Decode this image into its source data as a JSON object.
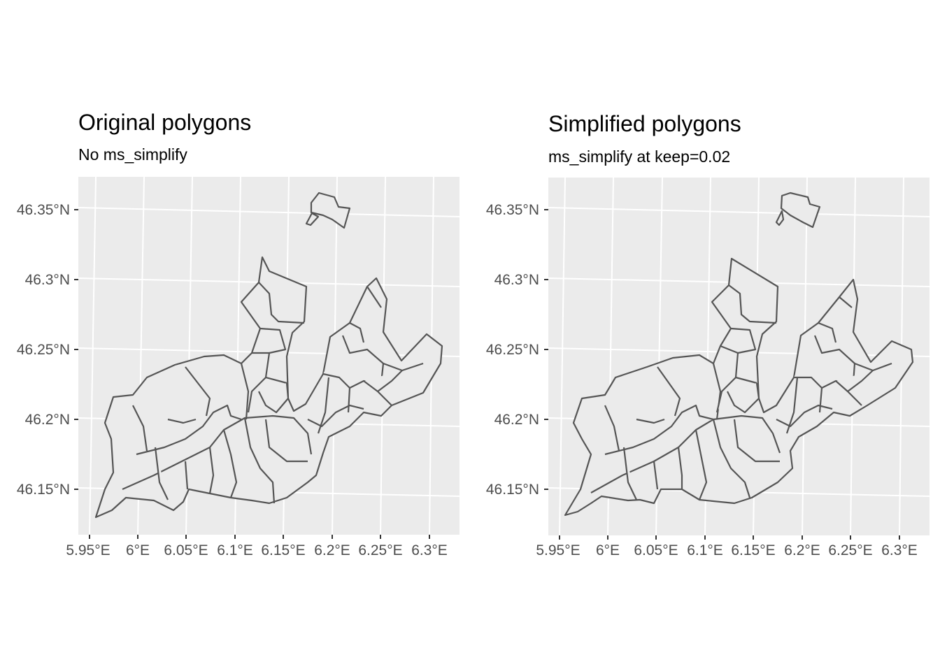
{
  "panels": [
    {
      "title": "Original polygons",
      "subtitle": "No ms_simplify",
      "x_ticks": [
        "5.95°E",
        "6°E",
        "6.05°E",
        "6.1°E",
        "6.15°E",
        "6.2°E",
        "6.25°E",
        "6.3°E"
      ],
      "y_ticks": [
        "46.35°N",
        "46.3°N",
        "46.25°N",
        "46.2°N",
        "46.15°N"
      ]
    },
    {
      "title": "Simplified polygons",
      "subtitle": "ms_simplify at keep=0.02",
      "x_ticks": [
        "5.95°E",
        "6°E",
        "6.05°E",
        "6.1°E",
        "6.15°E",
        "6.2°E",
        "6.25°E",
        "6.3°E"
      ],
      "y_ticks": [
        "46.35°N",
        "46.3°N",
        "46.25°N",
        "46.2°N",
        "46.15°N"
      ]
    }
  ],
  "colors": {
    "panel_background": "#ebebeb",
    "polygon_fill": "#ebebeb",
    "polygon_stroke": "#555555",
    "grid": "#ffffff"
  }
}
